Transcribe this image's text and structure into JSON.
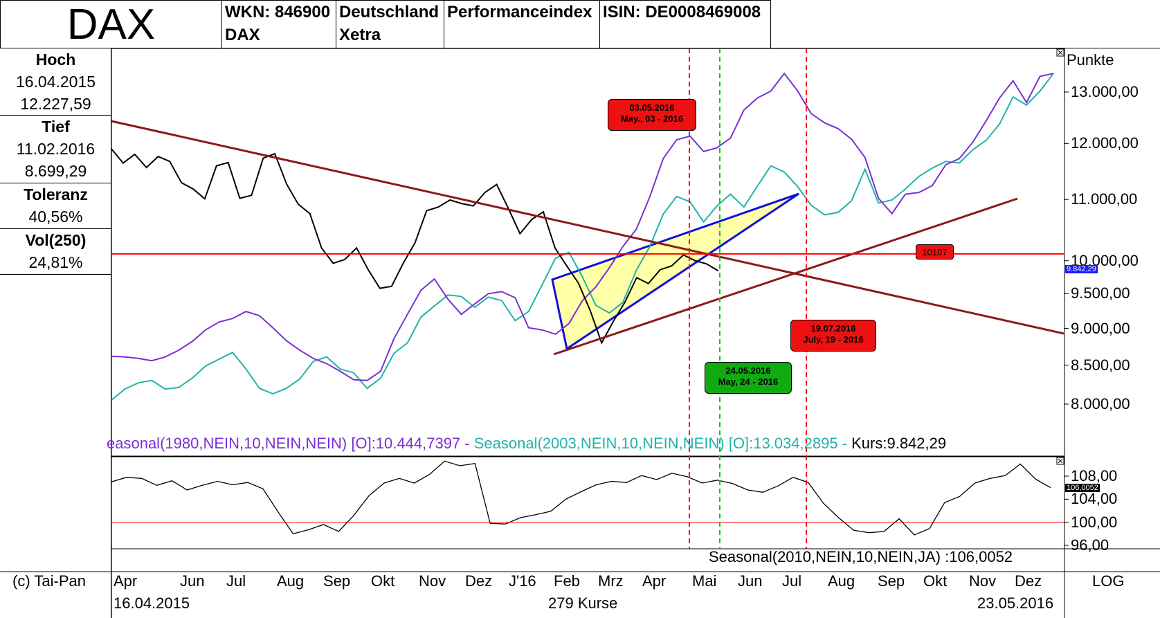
{
  "header": {
    "title": "DAX",
    "wkn": "WKN: 846900",
    "wkn_sub": "DAX",
    "country": "Deutschland",
    "country_sub": "Xetra",
    "index_type": "Performanceindex",
    "isin": "ISIN: DE0008469008"
  },
  "stats": {
    "hoch_label": "Hoch",
    "hoch_date": "16.04.2015",
    "hoch_value": "12.227,59",
    "tief_label": "Tief",
    "tief_date": "11.02.2016",
    "tief_value": "8.699,29",
    "toleranz_label": "Toleranz",
    "toleranz_value": "40,56%",
    "vol_label": "Vol(250)",
    "vol_value": "24,81%"
  },
  "chart_data": [
    {
      "type": "line",
      "title": "",
      "ylabel": "Punkte",
      "ylim": [
        7600,
        13600
      ],
      "yticks": [
        "13.000,00",
        "12.000,00",
        "11.000,00",
        "10.000,00",
        "9.500,00",
        "9.000,00",
        "8.500,00",
        "8.000,00"
      ],
      "price_tag": "9.842,29",
      "legend_text": "easonal(1980,NEIN,10,NEIN,NEIN) [O]:10.444,7397 - Seasonal(2003,NEIN,10,NEIN,NEIN) [O]:13.034,2895 - Kurs:9.842,29",
      "legend_parts": {
        "s1980": "easonal(1980,NEIN,10,NEIN,NEIN) [O]:10.444,7397 - ",
        "s2003": "Seasonal(2003,NEIN,10,NEIN,NEIN) [O]:13.034,2895 - ",
        "kurs": "Kurs:9.842,29"
      },
      "horizontal_line": 10107,
      "horizontal_label": "10107",
      "series": [
        {
          "key": "s1980",
          "color": "#7a2fd6",
          "values": [
            8620,
            8610,
            8590,
            8560,
            8610,
            8700,
            8820,
            8980,
            9090,
            9140,
            9240,
            9180,
            9010,
            8830,
            8700,
            8590,
            8520,
            8420,
            8310,
            8300,
            8420,
            8860,
            9200,
            9550,
            9720,
            9420,
            9200,
            9350,
            9500,
            9530,
            9440,
            9010,
            8980,
            8920,
            9070,
            9400,
            9600,
            9890,
            10220,
            10500,
            11040,
            11720,
            12070,
            12140,
            11850,
            11920,
            12100,
            12640,
            12880,
            13020,
            13380,
            13020,
            12570,
            12390,
            12280,
            12080,
            11740,
            11020,
            10760,
            11090,
            11120,
            11240,
            11610,
            11720,
            12020,
            12430,
            12880,
            13230,
            12790,
            13320,
            13380
          ]
        },
        {
          "key": "s2003",
          "color": "#20b2aa",
          "values": [
            8050,
            8190,
            8270,
            8300,
            8190,
            8210,
            8330,
            8490,
            8580,
            8670,
            8450,
            8200,
            8130,
            8200,
            8320,
            8550,
            8610,
            8450,
            8400,
            8200,
            8330,
            8660,
            8800,
            9160,
            9320,
            9480,
            9460,
            9300,
            9450,
            9400,
            9110,
            9240,
            9630,
            10040,
            10130,
            9750,
            9330,
            9220,
            9370,
            9850,
            10220,
            10750,
            11050,
            10960,
            10620,
            10890,
            11090,
            10870,
            11230,
            11590,
            11480,
            11220,
            10900,
            10740,
            10780,
            10980,
            11530,
            10940,
            10990,
            11180,
            11400,
            11550,
            11670,
            11640,
            11880,
            12060,
            12370,
            12900,
            12740,
            13020,
            13380
          ]
        },
        {
          "key": "kurs",
          "color": "#000000",
          "values": [
            11900,
            11640,
            11800,
            11560,
            11760,
            11670,
            11290,
            11180,
            11010,
            11590,
            11650,
            11020,
            11070,
            11730,
            11810,
            11270,
            10920,
            10760,
            10200,
            9960,
            10020,
            10200,
            9860,
            9580,
            9610,
            9960,
            10280,
            10810,
            10870,
            10990,
            10930,
            10890,
            11120,
            11260,
            10850,
            10430,
            10660,
            10790,
            10200,
            9920,
            9660,
            9260,
            8800,
            9100,
            9380,
            9740,
            9650,
            9860,
            9920,
            10090,
            10000,
            9950,
            9842
          ]
        }
      ]
    },
    {
      "type": "line",
      "title": "",
      "ylim": [
        95,
        111
      ],
      "yticks": [
        "108,00",
        "104,00",
        "100,00",
        "96,00"
      ],
      "price_tag": "106,0052",
      "legend_text": "Seasonal(2010,NEIN,10,NEIN,JA) :106,0052",
      "horizontal_line": 100,
      "series": [
        {
          "key": "seasonal2010",
          "color": "#000000",
          "values": [
            107.0,
            107.8,
            107.6,
            106.4,
            107.2,
            105.6,
            106.4,
            107.1,
            106.5,
            106.9,
            105.8,
            101.8,
            98.0,
            98.7,
            99.6,
            98.4,
            101.2,
            104.6,
            106.8,
            107.6,
            106.8,
            108.3,
            110.6,
            109.8,
            110.2,
            99.8,
            99.7,
            100.8,
            101.3,
            101.9,
            104.0,
            105.3,
            106.5,
            107.1,
            106.9,
            108.1,
            107.4,
            108.5,
            107.9,
            106.8,
            107.3,
            106.7,
            105.6,
            105.2,
            106.3,
            107.8,
            106.9,
            103.3,
            100.8,
            98.6,
            98.2,
            98.4,
            100.6,
            97.8,
            98.9,
            103.4,
            104.5,
            106.8,
            107.6,
            108.1,
            110.1,
            107.5,
            106.0
          ]
        }
      ]
    }
  ],
  "markers": {
    "m1_date": "03.05.2016",
    "m1_text": "May., 03 - 2016",
    "m2_date": "24.05.2016",
    "m2_text": "May, 24 - 2016",
    "m3_date": "19.07.2016",
    "m3_text": "July, 19 - 2016"
  },
  "xaxis": {
    "months": [
      "Apr",
      "Jun",
      "Jul",
      "Aug",
      "Sep",
      "Okt",
      "Nov",
      "Dez",
      "J'16",
      "Feb",
      "Mrz",
      "Apr",
      "Mai",
      "Jun",
      "Jul",
      "Aug",
      "Sep",
      "Okt",
      "Nov",
      "Dez"
    ],
    "copyright": "(c) Tai-Pan",
    "scale": "LOG",
    "start_date": "16.04.2015",
    "count": "279 Kurse",
    "end_date": "23.05.2016"
  },
  "colors": {
    "trend": "#8b1a1a",
    "wedge_fill": "#ffff99",
    "wedge_stroke": "#1010e0",
    "red": "#ff0000",
    "green": "#00c000",
    "label_red": "#ee1111",
    "label_green": "#11aa11"
  }
}
